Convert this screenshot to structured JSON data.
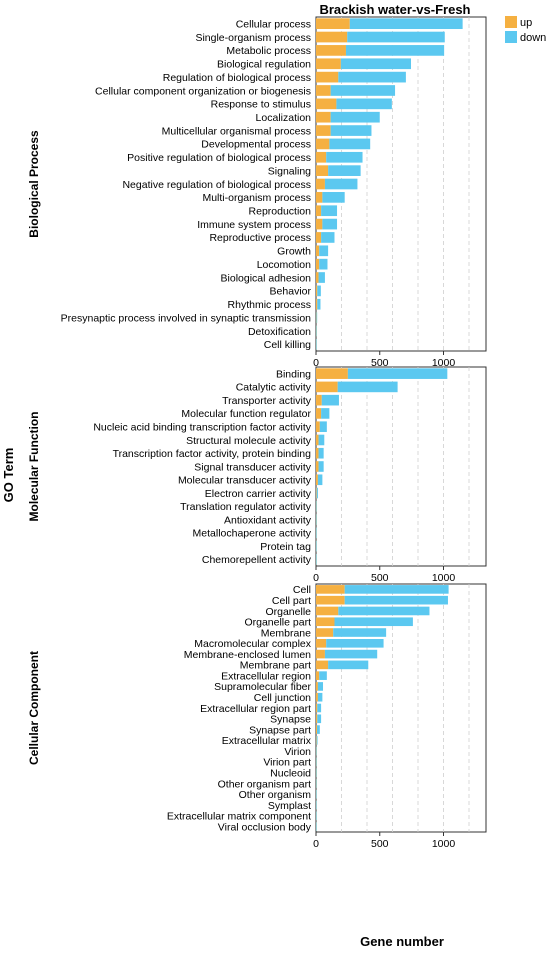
{
  "chart_data": {
    "type": "bar",
    "orientation": "horizontal",
    "stacked": true,
    "title": "Brackish water-vs-Fresh",
    "xlabel": "Gene number",
    "ylabel": "GO Term",
    "xlim": [
      0,
      1350
    ],
    "x_ticks": [
      0,
      500,
      1000
    ],
    "grid": "dashed vertical",
    "legend": {
      "position": "top-right",
      "entries": [
        {
          "name": "up",
          "color": "#F5B041"
        },
        {
          "name": "down",
          "color": "#5BC8F0"
        }
      ]
    },
    "colors": {
      "up": "#F5B041",
      "down": "#5BC8F0"
    },
    "panels": [
      {
        "name": "Biological Process",
        "categories": [
          "Cellular process",
          "Single-organism process",
          "Metabolic process",
          "Biological regulation",
          "Regulation of biological process",
          "Cellular component organization or biogenesis",
          "Response to stimulus",
          "Localization",
          "Multicellular organismal process",
          "Developmental process",
          "Positive regulation of biological process",
          "Signaling",
          "Negative regulation of biological process",
          "Multi-organism process",
          "Reproduction",
          "Immune system process",
          "Reproductive process",
          "Growth",
          "Locomotion",
          "Biological adhesion",
          "Behavior",
          "Rhythmic process",
          "Presynaptic process involved in synaptic transmission",
          "Detoxification",
          "Cell killing"
        ],
        "series": [
          {
            "name": "up",
            "values": [
              265,
              245,
              235,
              195,
              175,
              115,
              160,
              115,
              115,
              105,
              80,
              95,
              70,
              50,
              40,
              50,
              40,
              25,
              25,
              20,
              10,
              10,
              3,
              2,
              1
            ]
          },
          {
            "name": "down",
            "values": [
              885,
              765,
              770,
              550,
              530,
              505,
              435,
              385,
              320,
              320,
              285,
              255,
              255,
              175,
              125,
              115,
              105,
              70,
              65,
              50,
              28,
              25,
              6,
              4,
              3
            ]
          }
        ]
      },
      {
        "name": "Molecular Function",
        "categories": [
          "Binding",
          "Catalytic activity",
          "Transporter activity",
          "Molecular function regulator",
          "Nucleic acid binding transcription factor activity",
          "Structural molecule activity",
          "Transcription factor activity, protein binding",
          "Signal transducer activity",
          "Molecular transducer activity",
          "Electron carrier activity",
          "Translation regulator activity",
          "Antioxidant activity",
          "Metallochaperone activity",
          "Protein tag",
          "Chemorepellent activity"
        ],
        "series": [
          {
            "name": "up",
            "values": [
              250,
              170,
              45,
              40,
              30,
              20,
              20,
              20,
              15,
              5,
              2,
              2,
              1,
              1,
              1
            ]
          },
          {
            "name": "down",
            "values": [
              780,
              470,
              135,
              65,
              55,
              45,
              40,
              40,
              35,
              10,
              4,
              3,
              2,
              1,
              1
            ]
          }
        ]
      },
      {
        "name": "Cellular Component",
        "categories": [
          "Cell",
          "Cell part",
          "Organelle",
          "Organelle part",
          "Membrane",
          "Macromolecular complex",
          "Membrane-enclosed lumen",
          "Membrane part",
          "Extracellular region",
          "Supramolecular fiber",
          "Cell junction",
          "Extracellular region part",
          "Synapse",
          "Synapse part",
          "Extracellular matrix",
          "Virion",
          "Virion part",
          "Nucleoid",
          "Other organism part",
          "Other organism",
          "Symplast",
          "Extracellular matrix component",
          "Viral occlusion body"
        ],
        "series": [
          {
            "name": "up",
            "values": [
              225,
              225,
              175,
              145,
              135,
              80,
              70,
              95,
              25,
              15,
              15,
              10,
              10,
              8,
              4,
              2,
              2,
              2,
              2,
              1,
              1,
              1,
              1
            ]
          },
          {
            "name": "down",
            "values": [
              815,
              810,
              715,
              615,
              415,
              450,
              410,
              315,
              60,
              40,
              35,
              30,
              30,
              22,
              8,
              4,
              4,
              3,
              3,
              2,
              2,
              2,
              1
            ]
          }
        ]
      }
    ]
  }
}
